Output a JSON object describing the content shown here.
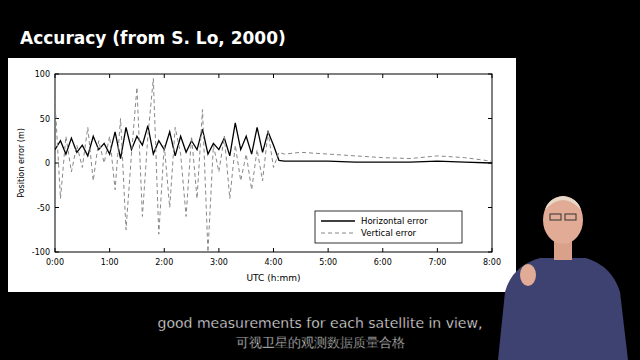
{
  "chart_data": {
    "type": "line",
    "title": "Accuracy (from S. Lo, 2000)",
    "x_label": "UTC (h:mm)",
    "y_label": "Position error (m)",
    "x": [
      0,
      0.1,
      0.2,
      0.3,
      0.4,
      0.5,
      0.6,
      0.7,
      0.8,
      0.9,
      1.0,
      1.1,
      1.2,
      1.3,
      1.4,
      1.5,
      1.6,
      1.7,
      1.8,
      1.9,
      2.0,
      2.1,
      2.2,
      2.3,
      2.4,
      2.5,
      2.6,
      2.7,
      2.8,
      2.9,
      3.0,
      3.1,
      3.2,
      3.3,
      3.4,
      3.5,
      3.6,
      3.7,
      3.8,
      3.9,
      4.0,
      4.1,
      4.2,
      4.5,
      5.0,
      5.5,
      6.0,
      6.5,
      7.0,
      7.5,
      8.0
    ],
    "series": [
      {
        "name": "Horizontal error",
        "color": "#000000",
        "line_style": "solid",
        "values": [
          15,
          25,
          10,
          28,
          12,
          20,
          8,
          30,
          15,
          22,
          10,
          35,
          5,
          40,
          15,
          30,
          20,
          42,
          10,
          25,
          15,
          35,
          8,
          30,
          12,
          25,
          15,
          38,
          10,
          22,
          15,
          28,
          8,
          45,
          15,
          30,
          10,
          40,
          12,
          35,
          20,
          3,
          2,
          2,
          2,
          1,
          1,
          1,
          2,
          1,
          0
        ]
      },
      {
        "name": "Vertical error",
        "color": "#888888",
        "line_style": "dashed",
        "values": [
          70,
          -40,
          30,
          -10,
          20,
          -5,
          40,
          -20,
          25,
          0,
          30,
          -30,
          50,
          -75,
          10,
          85,
          -60,
          30,
          95,
          -80,
          20,
          -50,
          40,
          10,
          -60,
          30,
          -40,
          60,
          -100,
          20,
          -10,
          30,
          -40,
          20,
          -20,
          10,
          -30,
          15,
          -20,
          35,
          -5,
          12,
          10,
          12,
          10,
          8,
          6,
          5,
          8,
          6,
          2
        ]
      }
    ],
    "xlim": [
      0,
      8
    ],
    "xticks": [
      {
        "value": 0,
        "label": "0:00"
      },
      {
        "value": 1,
        "label": "1:00"
      },
      {
        "value": 2,
        "label": "2:00"
      },
      {
        "value": 3,
        "label": "3:00"
      },
      {
        "value": 4,
        "label": "4:00"
      },
      {
        "value": 5,
        "label": "5:00"
      },
      {
        "value": 6,
        "label": "6:00"
      },
      {
        "value": 7,
        "label": "7:00"
      },
      {
        "value": 8,
        "label": "8:00"
      }
    ],
    "ylim": [
      -100,
      100
    ],
    "yticks": [
      -100,
      -50,
      0,
      50,
      100
    ],
    "grid": false,
    "legend": "lower right"
  },
  "captions": [
    "good measurements for each satellite in view,",
    "可视卫星的观测数据质量合格"
  ]
}
